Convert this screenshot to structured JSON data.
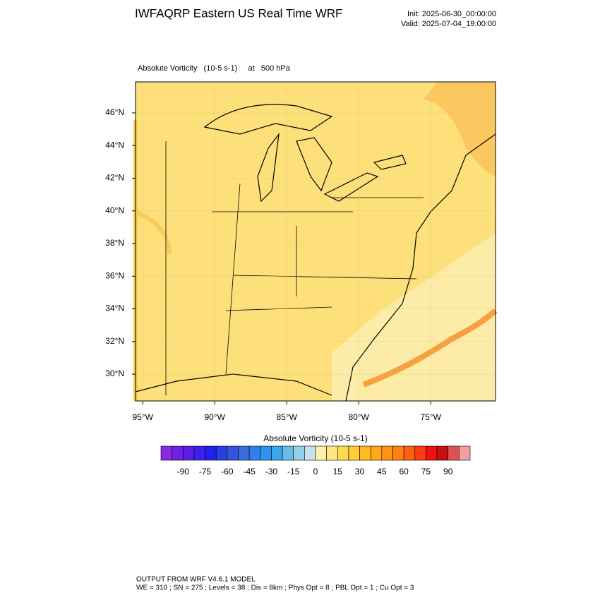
{
  "header": {
    "title": "IWFAQRP Eastern US Real Time WRF",
    "init": "Init: 2025-06-30_00:00:00",
    "valid": "Valid: 2025-07-04_19:00:00"
  },
  "chart_data": {
    "type": "map",
    "subtitle": "Absolute Vorticity   (10-5 s-1)     at   500 hPa",
    "xlim": [
      -95.5,
      -70.5
    ],
    "xticks": [
      {
        "value": -95,
        "label": "95°W"
      },
      {
        "value": -90,
        "label": "90°W"
      },
      {
        "value": -85,
        "label": "85°W"
      },
      {
        "value": -80,
        "label": "80°W"
      },
      {
        "value": -75,
        "label": "75°W"
      }
    ],
    "ylim": [
      28.36,
      47.9
    ],
    "yticks": [
      {
        "value": 30,
        "label": "30°N"
      },
      {
        "value": 32,
        "label": "32°N"
      },
      {
        "value": 34,
        "label": "34°N"
      },
      {
        "value": 36,
        "label": "36°N"
      },
      {
        "value": 38,
        "label": "38°N"
      },
      {
        "value": 40,
        "label": "40°N"
      },
      {
        "value": 42,
        "label": "42°N"
      },
      {
        "value": 44,
        "label": "44°N"
      },
      {
        "value": 46,
        "label": "46°N"
      }
    ],
    "colorbar": {
      "title": "Absolute Vorticity  (10-5 s-1)",
      "lim": [
        -105,
        105
      ],
      "colors": [
        "#8a2be2",
        "#7020e0",
        "#5a1ce8",
        "#3f1ff0",
        "#2020f0",
        "#2a3ee0",
        "#3355dd",
        "#3a6ddc",
        "#2f80e8",
        "#2a95f0",
        "#3aa8ea",
        "#6bbbe8",
        "#98cfe8",
        "#c5e3ef",
        "#fff2b0",
        "#ffe680",
        "#ffd950",
        "#ffcc33",
        "#ffbb22",
        "#ffa71a",
        "#ff9410",
        "#ff7f10",
        "#ff6010",
        "#ff3a10",
        "#f01010",
        "#c81010",
        "#e05050",
        "#f4a0a0"
      ],
      "ticks": [
        -90,
        -75,
        -60,
        -45,
        -30,
        -15,
        0,
        15,
        30,
        45,
        60,
        75,
        90
      ]
    }
  },
  "footer": {
    "line1": "OUTPUT FROM WRF V4.6.1 MODEL",
    "line2": "WE = 310 ; SN = 275 ; Levels = 38 ; Dis = 8km ; Phys Opt = 8 ; PBL Opt = 1 ; Cu Opt = 3"
  }
}
